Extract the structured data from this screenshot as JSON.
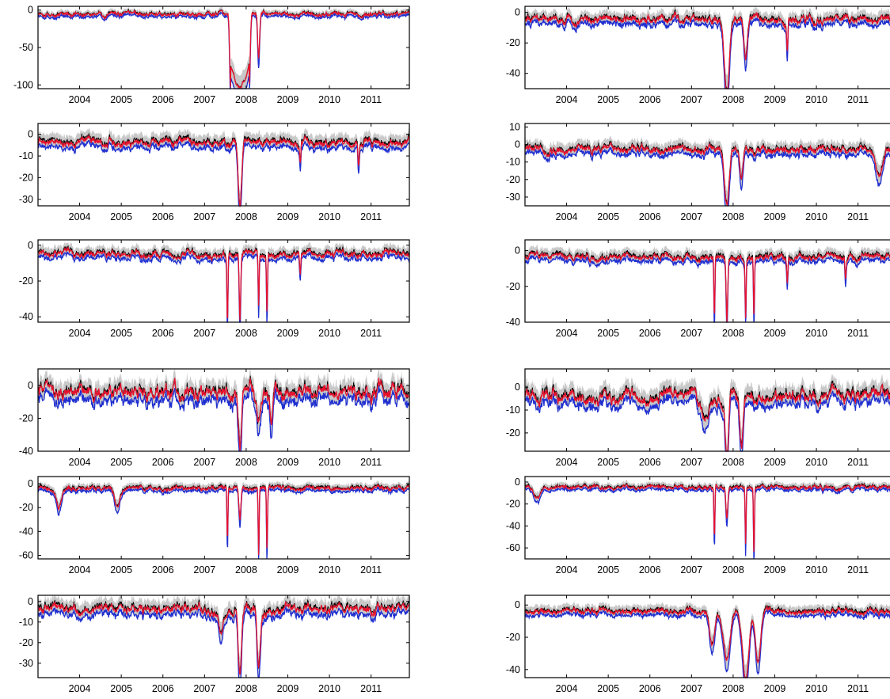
{
  "chart_data": [
    {
      "type": "line",
      "x": [
        "2003-01",
        "2011-12"
      ],
      "xticks": [
        "2004",
        "2005",
        "2006",
        "2007",
        "2008",
        "2009",
        "2010",
        "2011"
      ],
      "yticks": [
        "0",
        "-50",
        "-100"
      ],
      "yticks_values": [
        0,
        -50,
        -100
      ],
      "ylim": [
        -105,
        5
      ],
      "events": [
        {
          "t": 2007.85,
          "depth": -95,
          "width": 0.45,
          "shape": "plateau"
        },
        {
          "t": 2008.3,
          "depth": -60,
          "width": 0.08,
          "shape": "spike"
        }
      ],
      "baseline": -5,
      "noise": 3,
      "series": [
        {
          "values": "lower-band"
        },
        {
          "values": "upper-band"
        },
        {
          "values": "mean"
        },
        {
          "values": "estimate"
        }
      ]
    },
    {
      "type": "line",
      "x": [
        "2003-01",
        "2011-12"
      ],
      "xticks": [
        "2004",
        "2005",
        "2006",
        "2007",
        "2008",
        "2009",
        "2010",
        "2011"
      ],
      "yticks": [
        "0",
        "-20",
        "-40"
      ],
      "yticks_values": [
        0,
        -20,
        -40
      ],
      "ylim": [
        -50,
        4
      ],
      "events": [
        {
          "t": 2007.85,
          "depth": -48,
          "width": 0.15,
          "shape": "dip"
        },
        {
          "t": 2008.3,
          "depth": -25,
          "width": 0.1,
          "shape": "dip"
        },
        {
          "t": 2009.3,
          "depth": -20,
          "width": 0.05,
          "shape": "spike"
        }
      ],
      "baseline": -4,
      "noise": 3,
      "series": [
        {
          "values": "lower-band"
        },
        {
          "values": "upper-band"
        },
        {
          "values": "mean"
        },
        {
          "values": "estimate"
        }
      ]
    },
    {
      "type": "line",
      "x": [
        "2003-01",
        "2011-12"
      ],
      "xticks": [
        "2004",
        "2005",
        "2006",
        "2007",
        "2008",
        "2009",
        "2010",
        "2011"
      ],
      "yticks": [
        "0",
        "-10",
        "-20",
        "-30"
      ],
      "yticks_values": [
        0,
        -10,
        -20,
        -30
      ],
      "ylim": [
        -33,
        5
      ],
      "events": [
        {
          "t": 2007.85,
          "depth": -30,
          "width": 0.1,
          "shape": "dip"
        },
        {
          "t": 2009.3,
          "depth": -10,
          "width": 0.05,
          "shape": "spike"
        },
        {
          "t": 2010.7,
          "depth": -10,
          "width": 0.05,
          "shape": "spike"
        }
      ],
      "baseline": -3,
      "noise": 2,
      "series": [
        {
          "values": "lower-band"
        },
        {
          "values": "upper-band"
        },
        {
          "values": "mean"
        },
        {
          "values": "estimate"
        }
      ]
    },
    {
      "type": "line",
      "x": [
        "2003-01",
        "2011-12"
      ],
      "xticks": [
        "2004",
        "2005",
        "2006",
        "2007",
        "2008",
        "2009",
        "2010",
        "2011"
      ],
      "yticks": [
        "10",
        "0",
        "-10",
        "-20",
        "-30"
      ],
      "yticks_values": [
        10,
        0,
        -10,
        -20,
        -30
      ],
      "ylim": [
        -35,
        12
      ],
      "events": [
        {
          "t": 2007.85,
          "depth": -33,
          "width": 0.15,
          "shape": "dip"
        },
        {
          "t": 2008.2,
          "depth": -20,
          "width": 0.1,
          "shape": "dip"
        },
        {
          "t": 2011.5,
          "depth": -15,
          "width": 0.2,
          "shape": "dip"
        }
      ],
      "baseline": -2,
      "noise": 2.5,
      "series": [
        {
          "values": "lower-band"
        },
        {
          "values": "upper-band"
        },
        {
          "values": "mean"
        },
        {
          "values": "estimate"
        }
      ]
    },
    {
      "type": "line",
      "x": [
        "2003-01",
        "2011-12"
      ],
      "xticks": [
        "2004",
        "2005",
        "2006",
        "2007",
        "2008",
        "2009",
        "2010",
        "2011"
      ],
      "yticks": [
        "0",
        "-20",
        "-40"
      ],
      "yticks_values": [
        0,
        -20,
        -40
      ],
      "ylim": [
        -43,
        3
      ],
      "events": [
        {
          "t": 2007.55,
          "depth": -37,
          "width": 0.04,
          "shape": "spike"
        },
        {
          "t": 2007.85,
          "depth": -38,
          "width": 0.06,
          "shape": "spike"
        },
        {
          "t": 2008.3,
          "depth": -30,
          "width": 0.04,
          "shape": "spike"
        },
        {
          "t": 2008.5,
          "depth": -31,
          "width": 0.04,
          "shape": "spike"
        },
        {
          "t": 2009.3,
          "depth": -12,
          "width": 0.05,
          "shape": "spike"
        }
      ],
      "baseline": -4,
      "noise": 2,
      "series": [
        {
          "values": "lower-band"
        },
        {
          "values": "upper-band"
        },
        {
          "values": "mean"
        },
        {
          "values": "estimate"
        }
      ]
    },
    {
      "type": "line",
      "x": [
        "2003-01",
        "2011-12"
      ],
      "xticks": [
        "2004",
        "2005",
        "2006",
        "2007",
        "2008",
        "2009",
        "2010",
        "2011"
      ],
      "yticks": [
        "0",
        "-20",
        "-40"
      ],
      "yticks_values": [
        0,
        -20,
        -40
      ],
      "ylim": [
        -40,
        6
      ],
      "events": [
        {
          "t": 2007.55,
          "depth": -35,
          "width": 0.04,
          "shape": "spike"
        },
        {
          "t": 2007.85,
          "depth": -34,
          "width": 0.06,
          "shape": "spike"
        },
        {
          "t": 2008.3,
          "depth": -32,
          "width": 0.04,
          "shape": "spike"
        },
        {
          "t": 2008.5,
          "depth": -32,
          "width": 0.04,
          "shape": "spike"
        },
        {
          "t": 2009.3,
          "depth": -13,
          "width": 0.05,
          "shape": "spike"
        },
        {
          "t": 2010.7,
          "depth": -12,
          "width": 0.05,
          "shape": "spike"
        }
      ],
      "baseline": -3,
      "noise": 2,
      "series": [
        {
          "values": "lower-band"
        },
        {
          "values": "upper-band"
        },
        {
          "values": "mean"
        },
        {
          "values": "estimate"
        }
      ]
    },
    {
      "type": "line",
      "x": [
        "2003-01",
        "2011-12"
      ],
      "xticks": [
        "2004",
        "2005",
        "2006",
        "2007",
        "2008",
        "2009",
        "2010",
        "2011"
      ],
      "yticks": [
        "0",
        "-20",
        "-40"
      ],
      "yticks_values": [
        0,
        -20,
        -40
      ],
      "ylim": [
        -40,
        10
      ],
      "events": [
        {
          "t": 2007.85,
          "depth": -35,
          "width": 0.1,
          "shape": "dip"
        },
        {
          "t": 2008.3,
          "depth": -20,
          "width": 0.15,
          "shape": "dip"
        },
        {
          "t": 2008.6,
          "depth": -20,
          "width": 0.1,
          "shape": "dip"
        }
      ],
      "baseline": -3,
      "noise": 5,
      "series": [
        {
          "values": "lower-band"
        },
        {
          "values": "upper-band"
        },
        {
          "values": "mean"
        },
        {
          "values": "estimate"
        }
      ]
    },
    {
      "type": "line",
      "x": [
        "2003-01",
        "2011-12"
      ],
      "xticks": [
        "2004",
        "2005",
        "2006",
        "2007",
        "2008",
        "2009",
        "2010",
        "2011"
      ],
      "yticks": [
        "0",
        "-10",
        "-20"
      ],
      "yticks_values": [
        0,
        -10,
        -20
      ],
      "ylim": [
        -28,
        8
      ],
      "events": [
        {
          "t": 2007.85,
          "depth": -25,
          "width": 0.1,
          "shape": "dip"
        },
        {
          "t": 2008.2,
          "depth": -24,
          "width": 0.1,
          "shape": "dip"
        },
        {
          "t": 2007.3,
          "depth": -12,
          "width": 0.2,
          "shape": "dip"
        }
      ],
      "baseline": -3,
      "noise": 3,
      "series": [
        {
          "values": "lower-band"
        },
        {
          "values": "upper-band"
        },
        {
          "values": "mean"
        },
        {
          "values": "estimate"
        }
      ]
    },
    {
      "type": "line",
      "x": [
        "2003-01",
        "2011-12"
      ],
      "xticks": [
        "2004",
        "2005",
        "2006",
        "2007",
        "2008",
        "2009",
        "2010",
        "2011"
      ],
      "yticks": [
        "0",
        "-20",
        "-40",
        "-60"
      ],
      "yticks_values": [
        0,
        -20,
        -40,
        -60
      ],
      "ylim": [
        -63,
        6
      ],
      "events": [
        {
          "t": 2007.55,
          "depth": -43,
          "width": 0.04,
          "shape": "spike"
        },
        {
          "t": 2007.85,
          "depth": -27,
          "width": 0.08,
          "shape": "spike"
        },
        {
          "t": 2008.3,
          "depth": -56,
          "width": 0.04,
          "shape": "spike"
        },
        {
          "t": 2008.5,
          "depth": -52,
          "width": 0.04,
          "shape": "spike"
        },
        {
          "t": 2003.5,
          "depth": -17,
          "width": 0.15,
          "shape": "dip"
        },
        {
          "t": 2004.9,
          "depth": -16,
          "width": 0.15,
          "shape": "dip"
        }
      ],
      "baseline": -3,
      "noise": 2,
      "series": [
        {
          "values": "lower-band"
        },
        {
          "values": "upper-band"
        },
        {
          "values": "mean"
        },
        {
          "values": "estimate"
        }
      ]
    },
    {
      "type": "line",
      "x": [
        "2003-01",
        "2011-12"
      ],
      "xticks": [
        "2004",
        "2005",
        "2006",
        "2007",
        "2008",
        "2009",
        "2010",
        "2011"
      ],
      "yticks": [
        "0",
        "-20",
        "-40",
        "-60"
      ],
      "yticks_values": [
        0,
        -20,
        -40,
        -60
      ],
      "ylim": [
        -70,
        5
      ],
      "events": [
        {
          "t": 2007.55,
          "depth": -46,
          "width": 0.04,
          "shape": "spike"
        },
        {
          "t": 2007.85,
          "depth": -30,
          "width": 0.08,
          "shape": "spike"
        },
        {
          "t": 2008.3,
          "depth": -54,
          "width": 0.04,
          "shape": "spike"
        },
        {
          "t": 2008.5,
          "depth": -60,
          "width": 0.04,
          "shape": "spike"
        },
        {
          "t": 2003.3,
          "depth": -10,
          "width": 0.2,
          "shape": "dip"
        }
      ],
      "baseline": -4,
      "noise": 2,
      "series": [
        {
          "values": "lower-band"
        },
        {
          "values": "upper-band"
        },
        {
          "values": "mean"
        },
        {
          "values": "estimate"
        }
      ]
    },
    {
      "type": "line",
      "x": [
        "2003-01",
        "2011-12"
      ],
      "xticks": [
        "2004",
        "2005",
        "2006",
        "2007",
        "2008",
        "2009",
        "2010",
        "2011"
      ],
      "yticks": [
        "0",
        "-10",
        "-20",
        "-30"
      ],
      "yticks_values": [
        0,
        -10,
        -20,
        -30
      ],
      "ylim": [
        -37,
        3
      ],
      "events": [
        {
          "t": 2007.85,
          "depth": -34,
          "width": 0.1,
          "shape": "dip"
        },
        {
          "t": 2008.3,
          "depth": -27,
          "width": 0.1,
          "shape": "dip"
        },
        {
          "t": 2007.4,
          "depth": -12,
          "width": 0.1,
          "shape": "dip"
        }
      ],
      "baseline": -3,
      "noise": 2.5,
      "series": [
        {
          "values": "lower-band"
        },
        {
          "values": "upper-band"
        },
        {
          "values": "mean"
        },
        {
          "values": "estimate"
        }
      ]
    },
    {
      "type": "line",
      "x": [
        "2003-01",
        "2011-12"
      ],
      "xticks": [
        "2004",
        "2005",
        "2006",
        "2007",
        "2008",
        "2009",
        "2010",
        "2011"
      ],
      "yticks": [
        "0",
        "-20",
        "-40"
      ],
      "yticks_values": [
        0,
        -20,
        -40
      ],
      "ylim": [
        -45,
        6
      ],
      "events": [
        {
          "t": 2007.85,
          "depth": -30,
          "width": 0.2,
          "shape": "dip"
        },
        {
          "t": 2008.3,
          "depth": -42,
          "width": 0.2,
          "shape": "dip"
        },
        {
          "t": 2008.6,
          "depth": -30,
          "width": 0.15,
          "shape": "dip"
        },
        {
          "t": 2007.5,
          "depth": -20,
          "width": 0.15,
          "shape": "dip"
        }
      ],
      "baseline": -3,
      "noise": 2,
      "series": [
        {
          "values": "lower-band"
        },
        {
          "values": "upper-band"
        },
        {
          "values": "mean"
        },
        {
          "values": "estimate"
        }
      ]
    }
  ],
  "colors": {
    "band": "#9b9b9b",
    "mean": "#000000",
    "lower": "#1f2fd0",
    "estimate": "#e8112d"
  }
}
